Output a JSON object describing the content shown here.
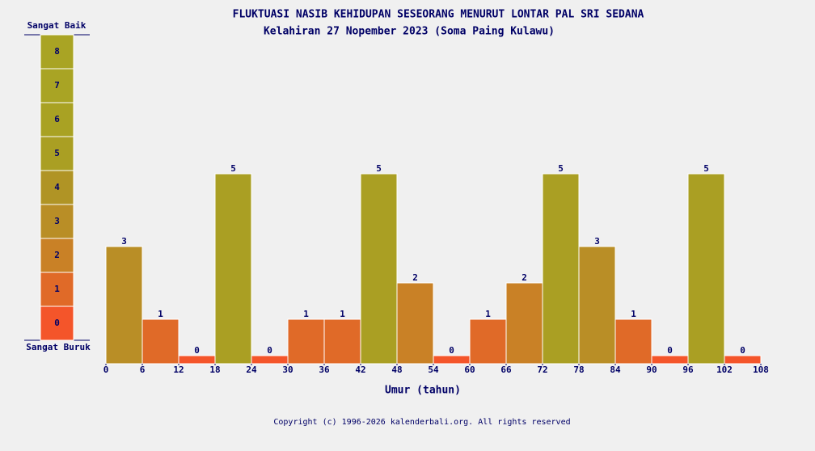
{
  "chart_data": {
    "type": "histogram",
    "title": "FLUKTUASI NASIB KEHIDUPAN SESEORANG MENURUT LONTAR PAL SRI SEDANA",
    "subtitle": "Kelahiran 27 Nopember 2023 (Soma Paing Kulawu)",
    "x_label": "Umur (tahun)",
    "bins": [
      0,
      6,
      12,
      18,
      24,
      30,
      36,
      42,
      48,
      54,
      60,
      66,
      72,
      78,
      84,
      90,
      96,
      102,
      108
    ],
    "values": [
      3,
      1,
      0,
      5,
      0,
      1,
      1,
      5,
      2,
      0,
      1,
      2,
      5,
      3,
      1,
      0,
      5,
      0
    ],
    "xlim": [
      0,
      108
    ],
    "xticks": [
      0,
      6,
      12,
      18,
      24,
      30,
      36,
      42,
      48,
      54,
      60,
      66,
      72,
      78,
      84,
      90,
      96,
      102,
      108
    ],
    "scale": {
      "top_label": "Sangat Baik",
      "bottom_label": "Sangat Buruk",
      "levels": [
        0,
        1,
        2,
        3,
        4,
        5,
        6,
        7,
        8
      ],
      "colors": [
        "#f4552a",
        "#e06a28",
        "#c98126",
        "#b98e26",
        "#b09425",
        "#aa9f23",
        "#a9a223",
        "#a9a424",
        "#a9a424"
      ]
    },
    "footer": "Copyright (c) 1996-2026 kalenderbali.org. All rights reserved"
  }
}
